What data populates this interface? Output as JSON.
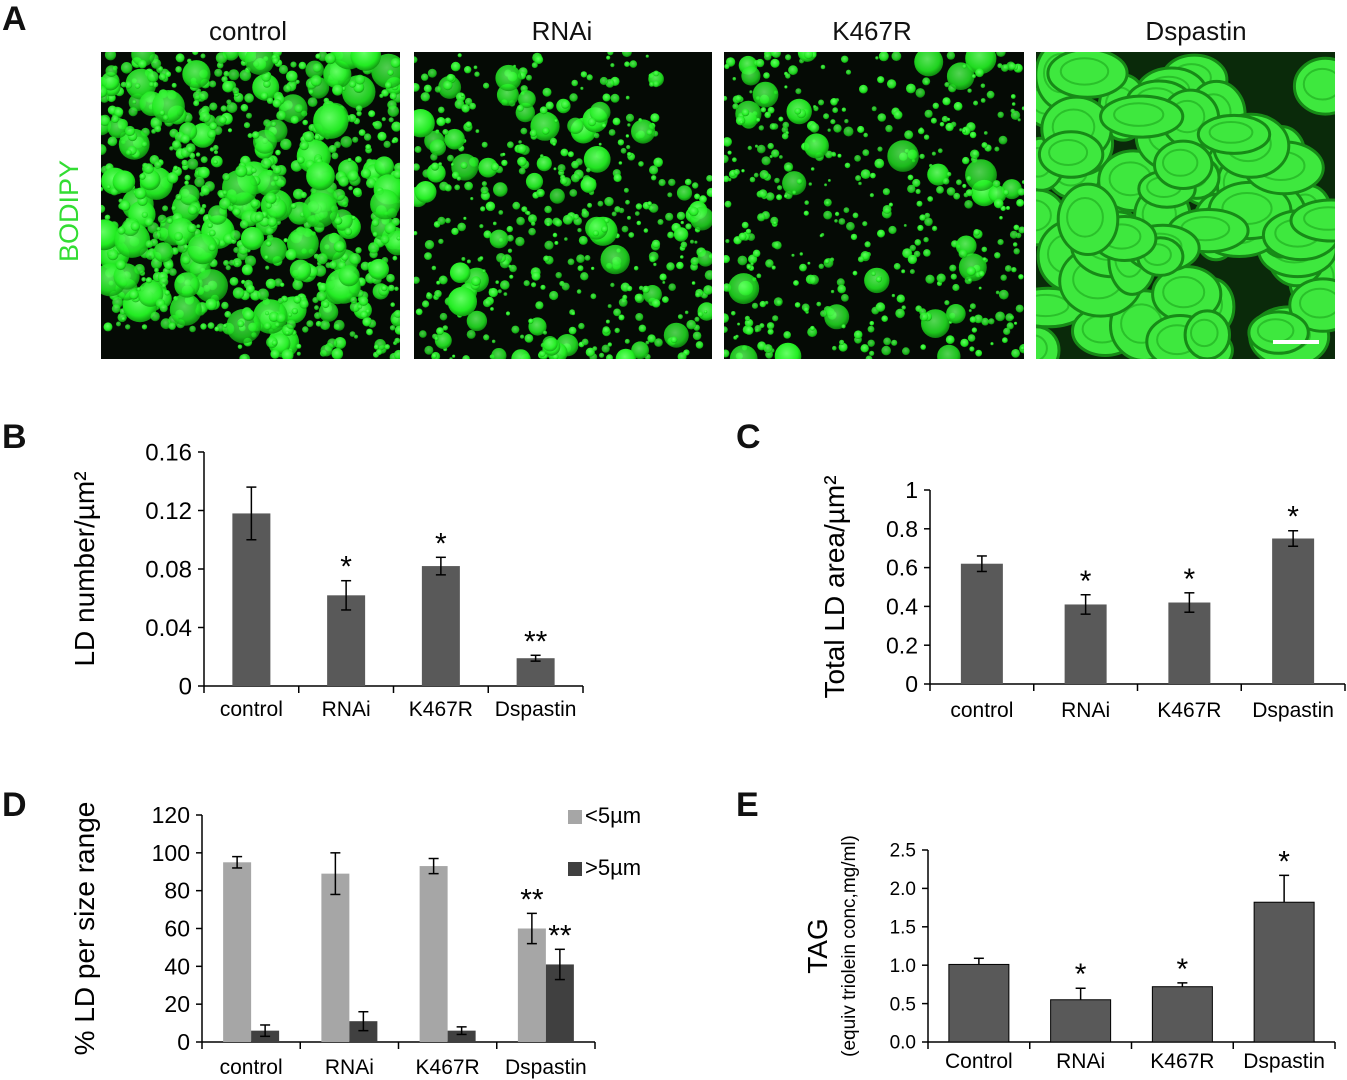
{
  "panel_letters": [
    "A",
    "B",
    "C",
    "D",
    "E"
  ],
  "panel_a": {
    "titles": [
      "control",
      "RNAi",
      "K467R",
      "Dspastin"
    ],
    "stain_label": "BODIPY",
    "stain_color": "#33dd33"
  },
  "colors": {
    "bar_dark": "#595959",
    "bar_light": "#a6a6a6",
    "bar_darkest": "#404040",
    "droplet_green": "#22ee22"
  },
  "chart_data": [
    {
      "id": "B",
      "type": "bar",
      "categories": [
        "control",
        "RNAi",
        "K467R",
        "Dspastin"
      ],
      "values": [
        0.118,
        0.062,
        0.082,
        0.019
      ],
      "errors": [
        0.018,
        0.01,
        0.006,
        0.002
      ],
      "annotations": [
        "",
        "*",
        "*",
        "**"
      ],
      "ylabel": "LD number/µm²",
      "ylim": [
        0,
        0.16
      ],
      "yticks": [
        "0",
        "0.04",
        "0.08",
        "0.12",
        "0.16"
      ],
      "ytick_values": [
        0,
        0.04,
        0.08,
        0.12,
        0.16
      ]
    },
    {
      "id": "C",
      "type": "bar",
      "categories": [
        "control",
        "RNAi",
        "K467R",
        "Dspastin"
      ],
      "values": [
        0.62,
        0.41,
        0.42,
        0.75
      ],
      "errors": [
        0.04,
        0.05,
        0.05,
        0.04
      ],
      "annotations": [
        "",
        "*",
        "*",
        "*"
      ],
      "ylabel": "Total LD area/µm²",
      "ylim": [
        0,
        1
      ],
      "yticks": [
        "0",
        "0.2",
        "0.4",
        "0.6",
        "0.8",
        "1"
      ],
      "ytick_values": [
        0,
        0.2,
        0.4,
        0.6,
        0.8,
        1
      ]
    },
    {
      "id": "D",
      "type": "bar",
      "categories": [
        "control",
        "RNAi",
        "K467R",
        "Dspastin"
      ],
      "series": [
        {
          "name": "<5µm",
          "values": [
            95,
            89,
            93,
            60
          ],
          "errors": [
            3,
            11,
            4,
            8
          ],
          "annotations": [
            "",
            "",
            "",
            "**"
          ]
        },
        {
          "name": ">5µm",
          "values": [
            6,
            11,
            6,
            41
          ],
          "errors": [
            3,
            5,
            2,
            8
          ],
          "annotations": [
            "",
            "",
            "",
            "**"
          ]
        }
      ],
      "ylabel": "% LD per size range",
      "ylim": [
        0,
        120
      ],
      "yticks": [
        "0",
        "20",
        "40",
        "60",
        "80",
        "100",
        "120"
      ],
      "ytick_values": [
        0,
        20,
        40,
        60,
        80,
        100,
        120
      ],
      "legend": "top-right"
    },
    {
      "id": "E",
      "type": "bar",
      "categories": [
        "Control",
        "RNAi",
        "K467R",
        "Dspastin"
      ],
      "values": [
        1.01,
        0.55,
        0.72,
        1.82
      ],
      "errors": [
        0.08,
        0.15,
        0.05,
        0.35
      ],
      "annotations": [
        "",
        "*",
        "*",
        "*"
      ],
      "ylabel": "TAG",
      "ylabel2": "(equiv triolein conc,mg/ml)",
      "ylim": [
        0,
        2.5
      ],
      "yticks": [
        "0.0",
        "0.5",
        "1.0",
        "1.5",
        "2.0",
        "2.5"
      ],
      "ytick_values": [
        0,
        0.5,
        1.0,
        1.5,
        2.0,
        2.5
      ]
    }
  ]
}
